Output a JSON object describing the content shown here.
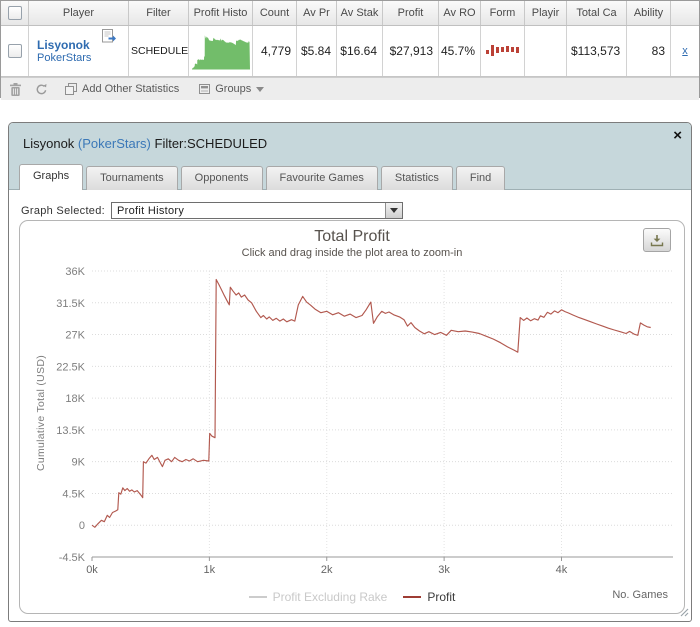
{
  "table": {
    "columns": [
      "",
      "Player",
      "Filter",
      "Profit Histo",
      "Count",
      "Av Pr",
      "Av Stak",
      "Profit",
      "Av RO",
      "Form",
      "Playir",
      "Total Ca",
      "Ability",
      ""
    ],
    "row": {
      "player_name": "Lisyonok",
      "player_site": "PokerStars",
      "filter": "SCHEDULED",
      "count": "4,779",
      "av_pr": "$5.84",
      "av_stak": "$16.64",
      "profit": "$27,913",
      "av_ro": "45.7%",
      "playing": "",
      "total_ca": "$113,573",
      "ability": "83",
      "remove_label": "x",
      "sparkline_color": "#72bd6a",
      "form_bar_color": "#bb4136",
      "form_bars": [
        [
          7,
          4
        ],
        [
          2,
          11
        ],
        [
          4,
          6
        ],
        [
          4,
          5
        ],
        [
          3,
          6
        ],
        [
          4,
          5
        ],
        [
          4,
          6
        ]
      ]
    },
    "toolbar": {
      "add_stats_label": "Add Other Statistics",
      "groups_label": "Groups"
    }
  },
  "popup": {
    "title_player": "Lisyonok ",
    "title_site": "(PokerStars)",
    "title_filter": " Filter:SCHEDULED",
    "close_label": "×",
    "tabs": [
      {
        "label": "Graphs",
        "active": true
      },
      {
        "label": "Tournaments",
        "active": false
      },
      {
        "label": "Opponents",
        "active": false
      },
      {
        "label": "Favourite Games",
        "active": false
      },
      {
        "label": "Statistics",
        "active": false
      },
      {
        "label": "Find",
        "active": false
      }
    ],
    "graph_selector": {
      "label": "Graph Selected:",
      "value": "Profit History"
    }
  },
  "chart_data": {
    "type": "line",
    "title": "Total Profit",
    "subtitle": "Click and drag inside the plot area to zoom-in",
    "ylabel": "Cumulative Total (USD)",
    "xlabel": "No. Games",
    "xlim": [
      0,
      4950
    ],
    "ylim": [
      -4500,
      36000
    ],
    "xticks": [
      0,
      1000,
      2000,
      3000,
      4000
    ],
    "xtick_labels": [
      "0k",
      "1k",
      "2k",
      "3k",
      "4k"
    ],
    "yticks": [
      -4500,
      0,
      4500,
      9000,
      13500,
      18000,
      22500,
      27000,
      31500,
      36000
    ],
    "ytick_labels": [
      "-4.5K",
      "0",
      "4.5K",
      "9K",
      "13.5K",
      "18K",
      "22.5K",
      "27K",
      "31.5K",
      "36K"
    ],
    "grid": "dotted",
    "legend_position": "bottom",
    "legend": [
      {
        "name": "Profit Excluding Rake",
        "dash_color": "#cccccc",
        "text_color": "#c9c9c9",
        "series_hidden": true
      },
      {
        "name": "Profit",
        "dash_color": "#9e3c34",
        "text_color": "#3a3a3a",
        "series_hidden": false
      }
    ],
    "series": [
      {
        "name": "Profit",
        "color": "#b2594f",
        "points": [
          [
            0,
            0
          ],
          [
            25,
            -300
          ],
          [
            50,
            200
          ],
          [
            80,
            700
          ],
          [
            105,
            500
          ],
          [
            130,
            1400
          ],
          [
            150,
            1100
          ],
          [
            175,
            1800
          ],
          [
            200,
            2000
          ],
          [
            220,
            2200
          ],
          [
            228,
            4600
          ],
          [
            245,
            4400
          ],
          [
            262,
            5300
          ],
          [
            280,
            4900
          ],
          [
            300,
            5200
          ],
          [
            320,
            4800
          ],
          [
            340,
            5000
          ],
          [
            360,
            4700
          ],
          [
            385,
            4900
          ],
          [
            405,
            4500
          ],
          [
            420,
            4200
          ],
          [
            432,
            3900
          ],
          [
            438,
            9000
          ],
          [
            460,
            8800
          ],
          [
            485,
            9400
          ],
          [
            510,
            9900
          ],
          [
            530,
            9300
          ],
          [
            558,
            9600
          ],
          [
            580,
            8900
          ],
          [
            600,
            8300
          ],
          [
            622,
            9200
          ],
          [
            650,
            9400
          ],
          [
            678,
            9000
          ],
          [
            705,
            9600
          ],
          [
            738,
            9200
          ],
          [
            768,
            9000
          ],
          [
            800,
            9300
          ],
          [
            830,
            9100
          ],
          [
            862,
            9400
          ],
          [
            900,
            9000
          ],
          [
            950,
            9200
          ],
          [
            995,
            9100
          ],
          [
            1003,
            13000
          ],
          [
            1022,
            12600
          ],
          [
            1048,
            12400
          ],
          [
            1058,
            34800
          ],
          [
            1080,
            34100
          ],
          [
            1102,
            33400
          ],
          [
            1128,
            32500
          ],
          [
            1150,
            31800
          ],
          [
            1170,
            31200
          ],
          [
            1178,
            33700
          ],
          [
            1200,
            33200
          ],
          [
            1228,
            32600
          ],
          [
            1250,
            32900
          ],
          [
            1272,
            32300
          ],
          [
            1300,
            32600
          ],
          [
            1330,
            31900
          ],
          [
            1360,
            31500
          ],
          [
            1400,
            30300
          ],
          [
            1438,
            29400
          ],
          [
            1460,
            29700
          ],
          [
            1488,
            29200
          ],
          [
            1510,
            29500
          ],
          [
            1540,
            29000
          ],
          [
            1570,
            29300
          ],
          [
            1600,
            28900
          ],
          [
            1630,
            29200
          ],
          [
            1660,
            28800
          ],
          [
            1700,
            29100
          ],
          [
            1728,
            28900
          ],
          [
            1758,
            31200
          ],
          [
            1795,
            32400
          ],
          [
            1828,
            31600
          ],
          [
            1860,
            31200
          ],
          [
            1900,
            30600
          ],
          [
            1950,
            30100
          ],
          [
            2000,
            30300
          ],
          [
            2050,
            29800
          ],
          [
            2100,
            30100
          ],
          [
            2150,
            29600
          ],
          [
            2200,
            29900
          ],
          [
            2250,
            29400
          ],
          [
            2300,
            29700
          ],
          [
            2335,
            30500
          ],
          [
            2375,
            31600
          ],
          [
            2398,
            28600
          ],
          [
            2430,
            29500
          ],
          [
            2468,
            30300
          ],
          [
            2500,
            30000
          ],
          [
            2530,
            30200
          ],
          [
            2570,
            29800
          ],
          [
            2620,
            29500
          ],
          [
            2658,
            29100
          ],
          [
            2688,
            28200
          ],
          [
            2718,
            28700
          ],
          [
            2750,
            28000
          ],
          [
            2790,
            27500
          ],
          [
            2830,
            27100
          ],
          [
            2870,
            27400
          ],
          [
            2920,
            27000
          ],
          [
            2970,
            27300
          ],
          [
            3020,
            26900
          ],
          [
            3060,
            27600
          ],
          [
            3120,
            27400
          ],
          [
            3180,
            27500
          ],
          [
            3240,
            27350
          ],
          [
            3300,
            27150
          ],
          [
            3360,
            26750
          ],
          [
            3420,
            26350
          ],
          [
            3480,
            25850
          ],
          [
            3540,
            25250
          ],
          [
            3600,
            24750
          ],
          [
            3628,
            24500
          ],
          [
            3648,
            29400
          ],
          [
            3678,
            29000
          ],
          [
            3705,
            29350
          ],
          [
            3738,
            28950
          ],
          [
            3768,
            29250
          ],
          [
            3800,
            29050
          ],
          [
            3820,
            29650
          ],
          [
            3850,
            29450
          ],
          [
            3880,
            30150
          ],
          [
            3910,
            29900
          ],
          [
            3940,
            30350
          ],
          [
            3970,
            30100
          ],
          [
            4000,
            30500
          ],
          [
            4030,
            30250
          ],
          [
            4060,
            30050
          ],
          [
            4100,
            29750
          ],
          [
            4150,
            29400
          ],
          [
            4200,
            29100
          ],
          [
            4250,
            28800
          ],
          [
            4300,
            28500
          ],
          [
            4350,
            28200
          ],
          [
            4400,
            27900
          ],
          [
            4450,
            27650
          ],
          [
            4500,
            27400
          ],
          [
            4550,
            27150
          ],
          [
            4580,
            27450
          ],
          [
            4620,
            27050
          ],
          [
            4650,
            26900
          ],
          [
            4672,
            28650
          ],
          [
            4700,
            28350
          ],
          [
            4730,
            28100
          ],
          [
            4760,
            28000
          ]
        ]
      }
    ]
  }
}
